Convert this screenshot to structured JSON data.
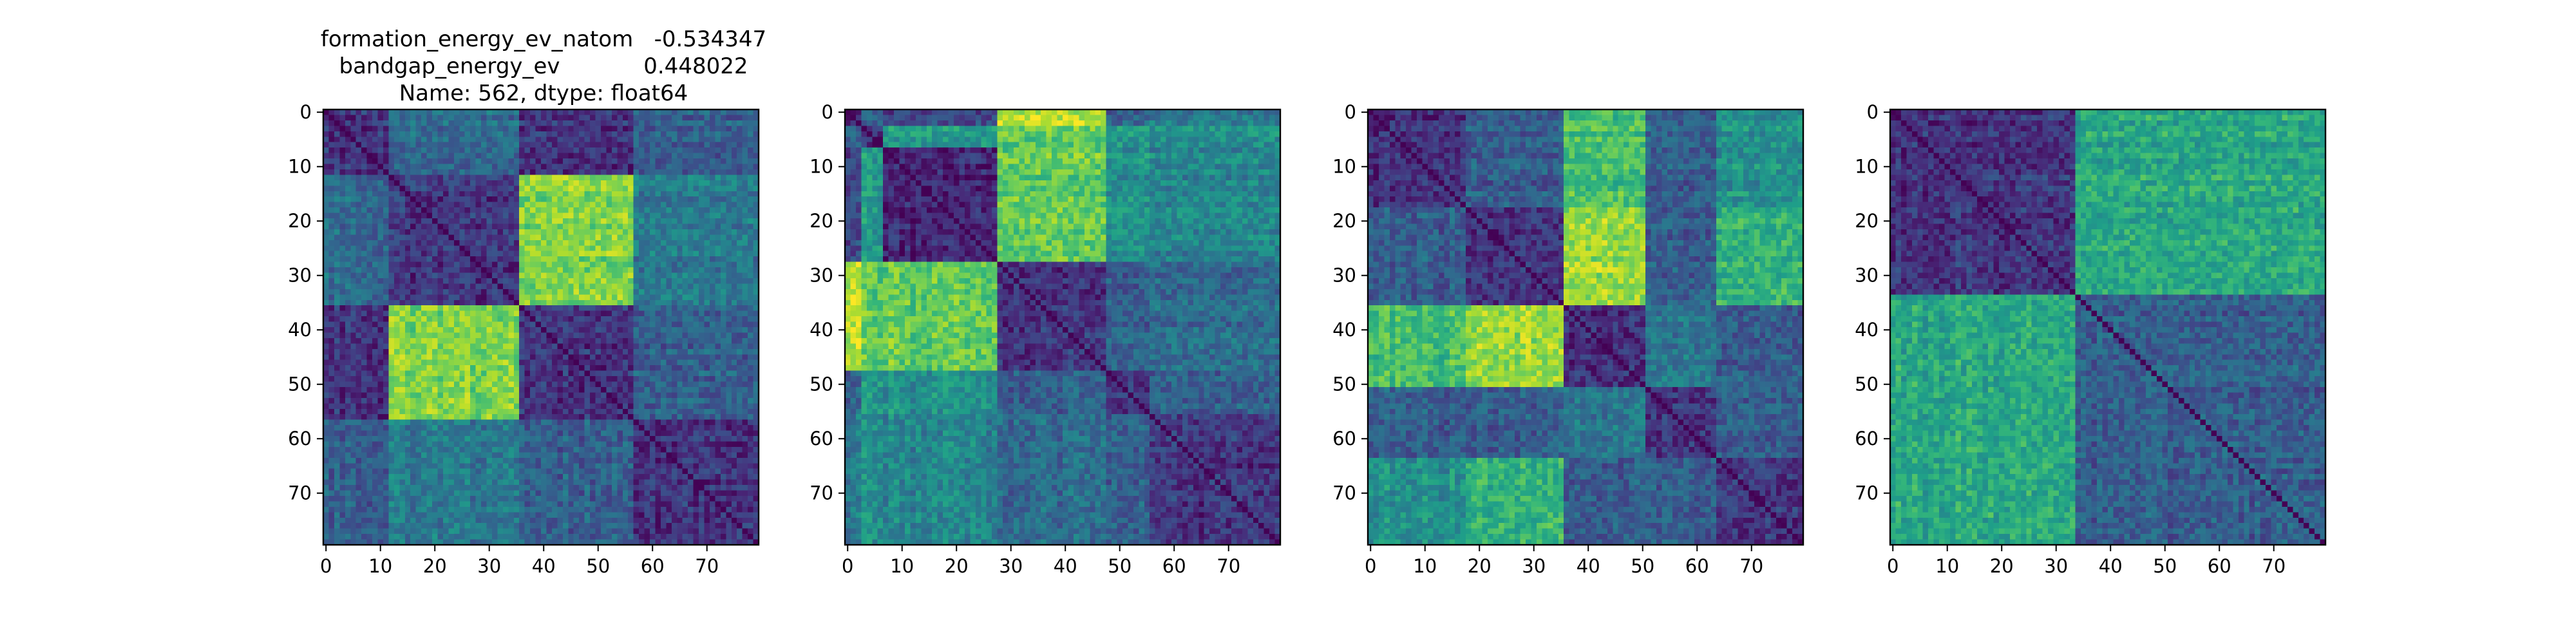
{
  "chart_data": [
    {
      "type": "heatmap",
      "title_lines": [
        "formation_energy_ev_natom   -0.534347",
        "bandgap_energy_ev            0.448022",
        "Name: 562, dtype: float64"
      ],
      "xlim": [
        -0.5,
        79.5
      ],
      "ylim": [
        79.5,
        -0.5
      ],
      "xticks": [
        0,
        10,
        20,
        30,
        40,
        50,
        60,
        70
      ],
      "yticks": [
        0,
        10,
        20,
        30,
        40,
        50,
        60,
        70
      ],
      "grid": false,
      "colormap": "viridis",
      "size": 80,
      "blocks": [
        0,
        12,
        36,
        57,
        80
      ],
      "block_values": [
        [
          0.15,
          0.35,
          0.15,
          0.3
        ],
        [
          0.35,
          0.15,
          0.8,
          0.4
        ],
        [
          0.15,
          0.8,
          0.15,
          0.3
        ],
        [
          0.3,
          0.4,
          0.3,
          0.15
        ]
      ]
    },
    {
      "type": "heatmap",
      "xlim": [
        -0.5,
        79.5
      ],
      "ylim": [
        79.5,
        -0.5
      ],
      "xticks": [
        0,
        10,
        20,
        30,
        40,
        50,
        60,
        70
      ],
      "yticks": [
        0,
        10,
        20,
        30,
        40,
        50,
        60,
        70
      ],
      "grid": false,
      "colormap": "viridis",
      "size": 80,
      "blocks": [
        0,
        3,
        7,
        28,
        48,
        56,
        80
      ],
      "block_values": [
        [
          0.1,
          0.3,
          0.2,
          0.9,
          0.3,
          0.4
        ],
        [
          0.3,
          0.1,
          0.55,
          0.75,
          0.55,
          0.5
        ],
        [
          0.2,
          0.55,
          0.1,
          0.75,
          0.5,
          0.45
        ],
        [
          0.9,
          0.75,
          0.75,
          0.15,
          0.3,
          0.35
        ],
        [
          0.3,
          0.55,
          0.5,
          0.3,
          0.15,
          0.3
        ],
        [
          0.4,
          0.5,
          0.45,
          0.35,
          0.3,
          0.15
        ]
      ]
    },
    {
      "type": "heatmap",
      "xlim": [
        -0.5,
        79.5
      ],
      "ylim": [
        79.5,
        -0.5
      ],
      "xticks": [
        0,
        10,
        20,
        30,
        40,
        50,
        60,
        70
      ],
      "yticks": [
        0,
        10,
        20,
        30,
        40,
        50,
        60,
        70
      ],
      "grid": false,
      "colormap": "viridis",
      "size": 80,
      "blocks": [
        0,
        18,
        36,
        51,
        64,
        80
      ],
      "block_values": [
        [
          0.15,
          0.3,
          0.7,
          0.3,
          0.5
        ],
        [
          0.3,
          0.15,
          0.85,
          0.3,
          0.65
        ],
        [
          0.7,
          0.85,
          0.15,
          0.4,
          0.3
        ],
        [
          0.3,
          0.3,
          0.4,
          0.15,
          0.3
        ],
        [
          0.5,
          0.65,
          0.3,
          0.3,
          0.15
        ]
      ]
    },
    {
      "type": "heatmap",
      "xlim": [
        -0.5,
        79.5
      ],
      "ylim": [
        79.5,
        -0.5
      ],
      "xticks": [
        0,
        10,
        20,
        30,
        40,
        50,
        60,
        70
      ],
      "yticks": [
        0,
        10,
        20,
        30,
        40,
        50,
        60,
        70
      ],
      "grid": false,
      "colormap": "viridis",
      "size": 80,
      "blocks": [
        0,
        34,
        80
      ],
      "block_values": [
        [
          0.15,
          0.6
        ],
        [
          0.6,
          0.3
        ]
      ]
    }
  ]
}
